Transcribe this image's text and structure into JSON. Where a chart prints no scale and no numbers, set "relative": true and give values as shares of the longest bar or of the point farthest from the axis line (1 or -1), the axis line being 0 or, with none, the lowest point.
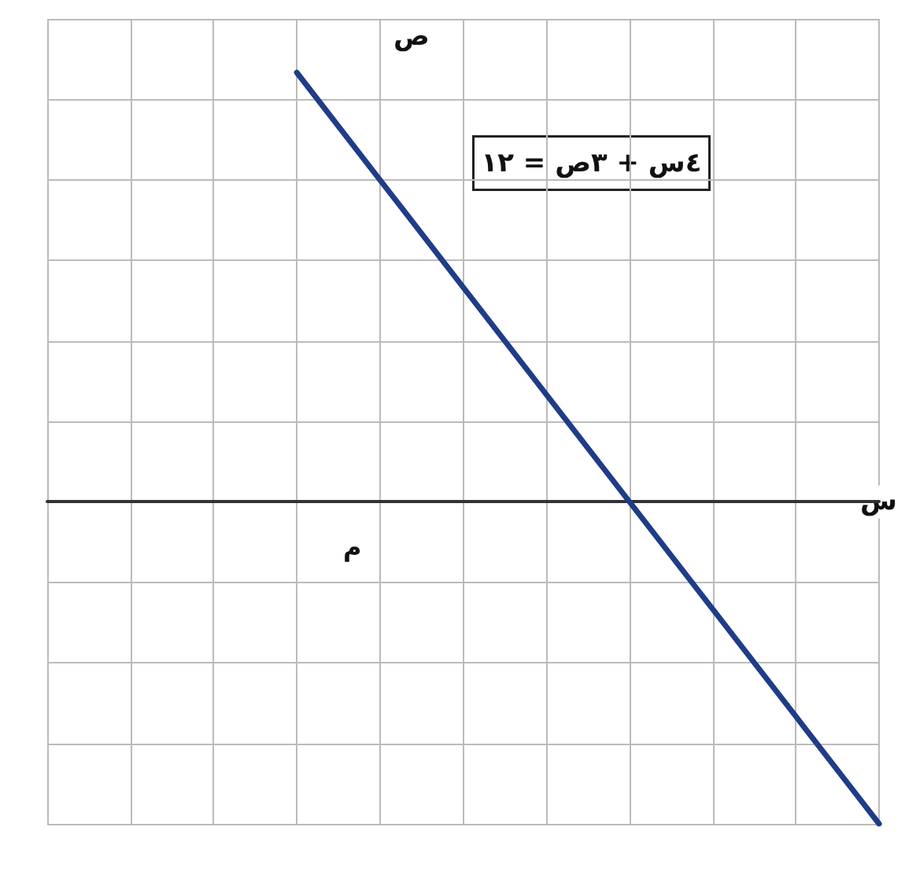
{
  "chart_data": {
    "type": "line",
    "relative": true,
    "xlabel": "س",
    "ylabel": "ص",
    "annotations": [
      "٤س + ٣ص = ١٢",
      "م"
    ],
    "categories": [
      null,
      null,
      null,
      null,
      null,
      null,
      null,
      null,
      null,
      null,
      null
    ],
    "series": [
      {
        "color": "#1f3c88",
        "values": [
          null,
          null,
          null,
          1,
          0.75,
          0.5,
          0.25,
          0,
          -0.25,
          -0.5,
          -0.75
        ]
      }
    ],
    "grid": true,
    "marker": "none",
    "line_style": "solid"
  }
}
